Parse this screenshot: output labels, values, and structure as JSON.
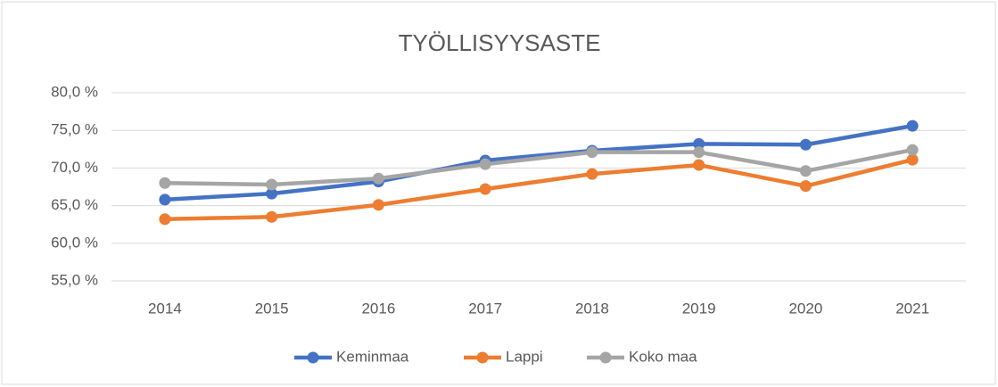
{
  "chart_data": {
    "type": "line",
    "title": "TYÖLLISYYSASTE",
    "categories": [
      "2014",
      "2015",
      "2016",
      "2017",
      "2018",
      "2019",
      "2020",
      "2021"
    ],
    "series": [
      {
        "name": "Keminmaa",
        "color": "#4472c4",
        "values": [
          65.8,
          66.6,
          68.2,
          71.0,
          72.3,
          73.2,
          73.1,
          75.6
        ]
      },
      {
        "name": "Lappi",
        "color": "#ed7d31",
        "values": [
          63.2,
          63.5,
          65.1,
          67.2,
          69.2,
          70.4,
          67.6,
          71.1
        ]
      },
      {
        "name": "Koko maa",
        "color": "#a5a5a5",
        "values": [
          68.0,
          67.8,
          68.6,
          70.5,
          72.1,
          72.1,
          69.6,
          72.4
        ]
      }
    ],
    "ylim": [
      55,
      80
    ],
    "yticks": [
      {
        "value": 55,
        "label": "55,0 %"
      },
      {
        "value": 60,
        "label": "60,0 %"
      },
      {
        "value": 65,
        "label": "65,0 %"
      },
      {
        "value": 70,
        "label": "70,0 %"
      },
      {
        "value": 75,
        "label": "75,0 %"
      },
      {
        "value": 80,
        "label": "80,0 %"
      }
    ],
    "grid": true,
    "legend": "bottom"
  }
}
